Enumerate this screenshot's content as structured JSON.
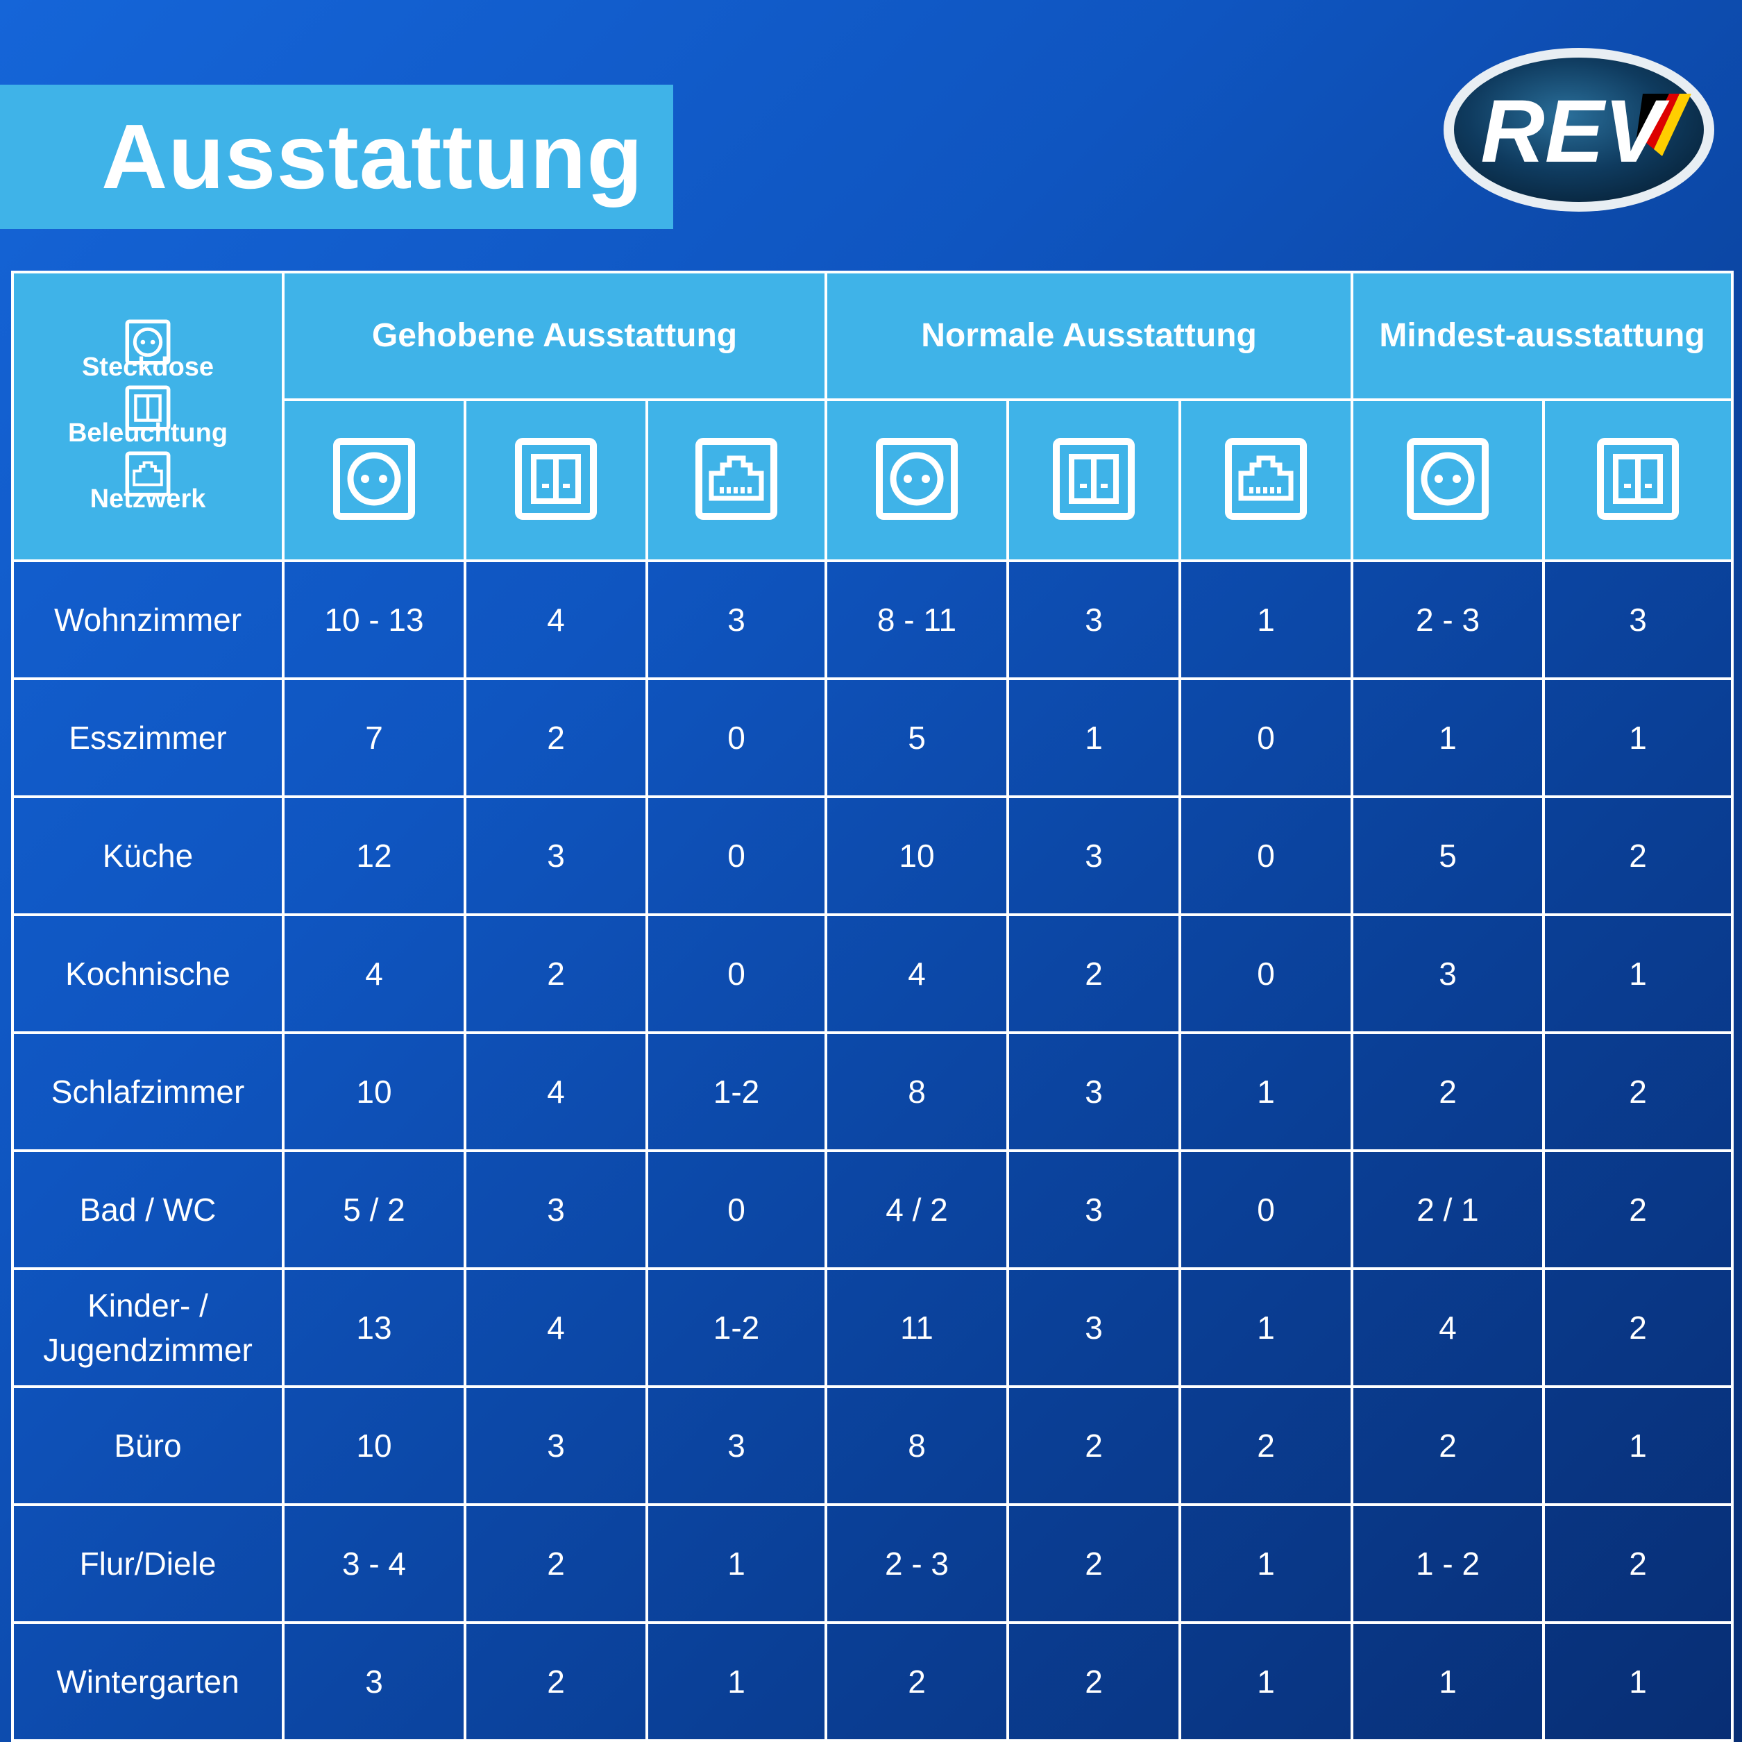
{
  "title": "Ausstattung",
  "logo": {
    "text": "REV",
    "flag_colors": [
      "#000000",
      "#dd0000",
      "#ffce00"
    ]
  },
  "legend": [
    {
      "icon": "socket-icon",
      "label": "Steckdose"
    },
    {
      "icon": "light-switch-icon",
      "label": "Beleuchtung"
    },
    {
      "icon": "network-icon",
      "label": "Netzwerk"
    }
  ],
  "groups": [
    {
      "label": "Gehobene Ausstattung",
      "icons": [
        "socket-icon",
        "light-switch-icon",
        "network-icon"
      ]
    },
    {
      "label": "Normale Ausstattung",
      "icons": [
        "socket-icon",
        "light-switch-icon",
        "network-icon"
      ]
    },
    {
      "label": "Mindest-ausstattung",
      "icons": [
        "socket-icon",
        "light-switch-icon"
      ]
    }
  ],
  "rows": [
    {
      "room": "Wohnzimmer",
      "values": [
        "10 - 13",
        "4",
        "3",
        "8 - 11",
        "3",
        "1",
        "2 - 3",
        "3"
      ]
    },
    {
      "room": "Esszimmer",
      "values": [
        "7",
        "2",
        "0",
        "5",
        "1",
        "0",
        "1",
        "1"
      ]
    },
    {
      "room": "Küche",
      "values": [
        "12",
        "3",
        "0",
        "10",
        "3",
        "0",
        "5",
        "2"
      ]
    },
    {
      "room": "Kochnische",
      "values": [
        "4",
        "2",
        "0",
        "4",
        "2",
        "0",
        "3",
        "1"
      ]
    },
    {
      "room": "Schlafzimmer",
      "values": [
        "10",
        "4",
        "1-2",
        "8",
        "3",
        "1",
        "2",
        "2"
      ]
    },
    {
      "room": "Bad / WC",
      "values": [
        "5 / 2",
        "3",
        "0",
        "4 / 2",
        "3",
        "0",
        "2 / 1",
        "2"
      ]
    },
    {
      "room": "Kinder- / Jugendzimmer",
      "values": [
        "13",
        "4",
        "1-2",
        "11",
        "3",
        "1",
        "4",
        "2"
      ]
    },
    {
      "room": "Büro",
      "values": [
        "10",
        "3",
        "3",
        "8",
        "2",
        "2",
        "2",
        "1"
      ]
    },
    {
      "room": "Flur/Diele",
      "values": [
        "3 - 4",
        "2",
        "1",
        "2 - 3",
        "2",
        "1",
        "1 - 2",
        "2"
      ]
    },
    {
      "room": "Wintergarten",
      "values": [
        "3",
        "2",
        "1",
        "2",
        "2",
        "1",
        "1",
        "1"
      ]
    }
  ],
  "colors": {
    "header_bg": "#3fb3e8",
    "body_bg": "#0f55c0",
    "border": "#ffffff"
  }
}
